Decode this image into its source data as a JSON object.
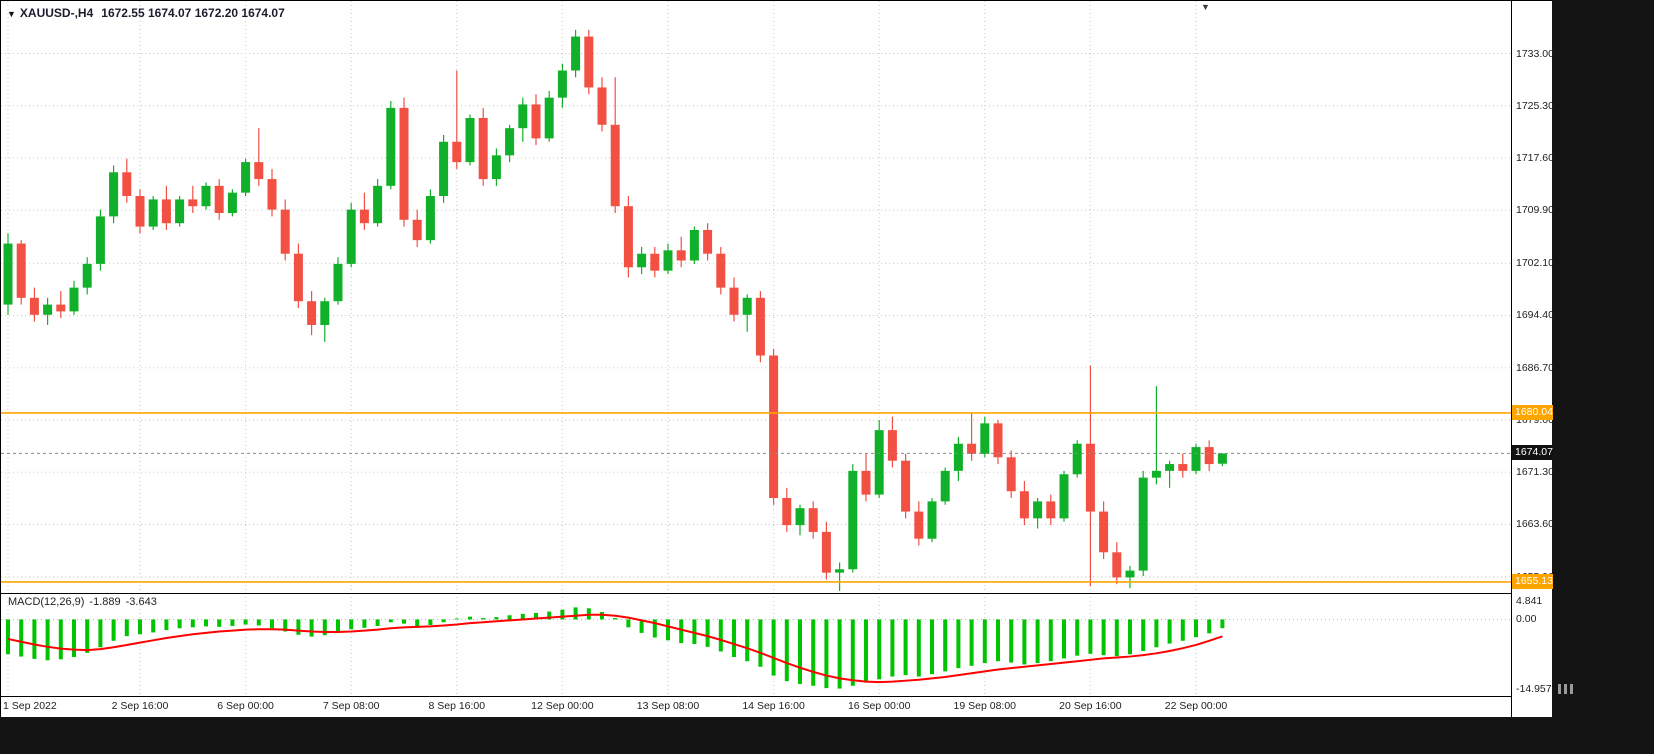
{
  "colors": {
    "background": "#ffffff",
    "frame": "#000000",
    "grid": "#c9c9c9",
    "bull": "#10b02a",
    "bear": "#f25042",
    "level": "#ffa500",
    "price_line": "#8a8a8a",
    "macd_histogram": "#00c400",
    "macd_signal": "#ff0000",
    "outside": "#141414"
  },
  "header": {
    "collapse_icon": "▼",
    "symbol": "XAUUSD-,H4",
    "ohlc": "1672.55 1674.07 1672.20 1674.07"
  },
  "macd_panel": {
    "title": "MACD(12,26,9)",
    "main_value": "-1.889",
    "signal_value": "-3.643"
  },
  "price_axis": {
    "labels": [
      "1733.00",
      "1725.30",
      "1717.60",
      "1709.90",
      "1702.10",
      "1694.40",
      "1686.70",
      "1679.00",
      "1671.30",
      "1663.60",
      "1655.90"
    ]
  },
  "macd_axis": {
    "labels": [
      "4.841",
      "0.00",
      "-14.957"
    ],
    "values": [
      4.841,
      0,
      -14.957
    ]
  },
  "levels": [
    {
      "label": "1680.04",
      "value": 1680.04
    },
    {
      "label": "1655.13",
      "value": 1655.13
    }
  ],
  "current_price": {
    "label": "1674.07",
    "value": 1674.07
  },
  "time_axis": {
    "labels": [
      "1 Sep 2022",
      "2 Sep 16:00",
      "6 Sep 00:00",
      "7 Sep 08:00",
      "8 Sep 16:00",
      "12 Sep 00:00",
      "13 Sep 08:00",
      "14 Sep 16:00",
      "16 Sep 00:00",
      "19 Sep 08:00",
      "20 Sep 16:00",
      "22 Sep 00:00"
    ],
    "tick_indices": [
      0,
      10,
      18,
      26,
      34,
      42,
      50,
      58,
      66,
      74,
      82,
      90
    ]
  },
  "chart_data": {
    "type": "candlestick",
    "symbol": "XAUUSD",
    "timeframe": "H4",
    "x": {
      "x0": 7,
      "dx": 13.2
    },
    "main": {
      "type": "candlestick",
      "ylim": [
        1653.5,
        1737.5
      ],
      "grid_prices": [
        1733.0,
        1725.3,
        1717.6,
        1709.9,
        1702.1,
        1694.4,
        1686.7,
        1679.0,
        1671.3,
        1663.6,
        1655.9
      ],
      "candles_ohlc": [
        [
          1696,
          1706.5,
          1694.5,
          1705
        ],
        [
          1705,
          1705.5,
          1696,
          1697
        ],
        [
          1697,
          1698.5,
          1693.5,
          1694.5
        ],
        [
          1694.5,
          1697,
          1693,
          1696
        ],
        [
          1696,
          1698,
          1694,
          1695
        ],
        [
          1695,
          1699.5,
          1694.5,
          1698.5
        ],
        [
          1698.5,
          1703,
          1697.5,
          1702
        ],
        [
          1702,
          1710,
          1701,
          1709
        ],
        [
          1709,
          1716.5,
          1708,
          1715.5
        ],
        [
          1715.5,
          1717.5,
          1711,
          1712
        ],
        [
          1712,
          1713,
          1706.5,
          1707.5
        ],
        [
          1707.5,
          1712,
          1707,
          1711.5
        ],
        [
          1711.5,
          1713.5,
          1707,
          1708
        ],
        [
          1708,
          1712,
          1707.5,
          1711.5
        ],
        [
          1711.5,
          1713.5,
          1709.5,
          1710.5
        ],
        [
          1710.5,
          1714,
          1710,
          1713.5
        ],
        [
          1713.5,
          1714.5,
          1708.5,
          1709.5
        ],
        [
          1709.5,
          1713,
          1709,
          1712.5
        ],
        [
          1712.5,
          1717.5,
          1712,
          1717
        ],
        [
          1717,
          1722,
          1713.5,
          1714.5
        ],
        [
          1714.5,
          1716,
          1709,
          1710
        ],
        [
          1710,
          1711.5,
          1702.5,
          1703.5
        ],
        [
          1703.5,
          1705,
          1695.5,
          1696.5
        ],
        [
          1696.5,
          1698,
          1691.5,
          1693
        ],
        [
          1693,
          1697,
          1690.5,
          1696.5
        ],
        [
          1696.5,
          1703,
          1696,
          1702
        ],
        [
          1702,
          1711,
          1701.5,
          1710
        ],
        [
          1710,
          1712.5,
          1707,
          1708
        ],
        [
          1708,
          1714.5,
          1707.5,
          1713.5
        ],
        [
          1713.5,
          1726,
          1713,
          1725
        ],
        [
          1725,
          1726.5,
          1707.5,
          1708.5
        ],
        [
          1708.5,
          1710,
          1704.5,
          1705.5
        ],
        [
          1705.5,
          1713,
          1705,
          1712
        ],
        [
          1712,
          1721,
          1711,
          1720
        ],
        [
          1720,
          1730.5,
          1716,
          1717
        ],
        [
          1717,
          1724,
          1716.5,
          1723.5
        ],
        [
          1723.5,
          1725,
          1713.5,
          1714.5
        ],
        [
          1714.5,
          1719,
          1713.5,
          1718
        ],
        [
          1718,
          1722.5,
          1717,
          1722
        ],
        [
          1722,
          1726.5,
          1720,
          1725.5
        ],
        [
          1725.5,
          1727,
          1719.5,
          1720.5
        ],
        [
          1720.5,
          1727.5,
          1720,
          1726.5
        ],
        [
          1726.5,
          1731.5,
          1725,
          1730.5
        ],
        [
          1730.5,
          1736.5,
          1729.5,
          1735.5
        ],
        [
          1735.5,
          1736.5,
          1727,
          1728
        ],
        [
          1728,
          1729.5,
          1721.5,
          1722.5
        ],
        [
          1722.5,
          1729.5,
          1709.5,
          1710.5
        ],
        [
          1710.5,
          1712,
          1700,
          1701.5
        ],
        [
          1701.5,
          1704.5,
          1700.5,
          1703.5
        ],
        [
          1703.5,
          1704.5,
          1700,
          1701
        ],
        [
          1701,
          1705,
          1700.5,
          1704
        ],
        [
          1704,
          1706,
          1701.5,
          1702.5
        ],
        [
          1702.5,
          1707.5,
          1702,
          1707
        ],
        [
          1707,
          1708,
          1702.5,
          1703.5
        ],
        [
          1703.5,
          1704.5,
          1697.5,
          1698.5
        ],
        [
          1698.5,
          1700,
          1693.5,
          1694.5
        ],
        [
          1694.5,
          1697.5,
          1692,
          1697
        ],
        [
          1697,
          1698,
          1687.5,
          1688.5
        ],
        [
          1688.5,
          1689.5,
          1666.5,
          1667.5
        ],
        [
          1667.5,
          1669,
          1662.5,
          1663.5
        ],
        [
          1663.5,
          1666.5,
          1662,
          1666
        ],
        [
          1666,
          1667,
          1661.5,
          1662.5
        ],
        [
          1662.5,
          1664,
          1655.5,
          1656.5
        ],
        [
          1656.5,
          1658,
          1653.8,
          1657
        ],
        [
          1657,
          1672.5,
          1656.5,
          1671.5
        ],
        [
          1671.5,
          1674,
          1667,
          1668
        ],
        [
          1668,
          1679,
          1667.5,
          1677.5
        ],
        [
          1677.5,
          1679.5,
          1672,
          1673
        ],
        [
          1673,
          1674,
          1664.5,
          1665.5
        ],
        [
          1665.5,
          1667,
          1660.5,
          1661.5
        ],
        [
          1661.5,
          1667.5,
          1661,
          1667
        ],
        [
          1667,
          1672,
          1666.5,
          1671.5
        ],
        [
          1671.5,
          1676.5,
          1670,
          1675.5
        ],
        [
          1675.5,
          1680,
          1673,
          1674
        ],
        [
          1674,
          1679.5,
          1673.5,
          1678.5
        ],
        [
          1678.5,
          1679,
          1672.5,
          1673.5
        ],
        [
          1673.5,
          1674.5,
          1667.5,
          1668.5
        ],
        [
          1668.5,
          1670,
          1663.5,
          1664.5
        ],
        [
          1664.5,
          1667.5,
          1663,
          1667
        ],
        [
          1667,
          1668,
          1663.5,
          1664.5
        ],
        [
          1664.5,
          1671.5,
          1664,
          1671
        ],
        [
          1671,
          1676,
          1670.5,
          1675.5
        ],
        [
          1675.5,
          1687,
          1654.5,
          1665.5
        ],
        [
          1665.5,
          1667,
          1658.5,
          1659.5
        ],
        [
          1659.5,
          1661,
          1654.8,
          1655.8
        ],
        [
          1655.8,
          1657.5,
          1654.2,
          1656.8
        ],
        [
          1656.8,
          1671.5,
          1656,
          1670.5
        ],
        [
          1670.5,
          1684,
          1669.5,
          1671.5
        ],
        [
          1671.5,
          1673,
          1669,
          1672.5
        ],
        [
          1672.5,
          1674,
          1670.5,
          1671.5
        ],
        [
          1671.5,
          1675.5,
          1671,
          1675
        ],
        [
          1675,
          1676,
          1671.5,
          1672.5
        ],
        [
          1672.55,
          1674.07,
          1672.2,
          1674.07
        ]
      ]
    },
    "macd": {
      "type": "bar",
      "ylim": [
        -16.5,
        5.7
      ],
      "histogram": [
        -7.5,
        -8,
        -8.5,
        -8.8,
        -8.6,
        -8.1,
        -7.2,
        -6,
        -4.6,
        -3.6,
        -3.2,
        -2.8,
        -2.3,
        -1.9,
        -1.7,
        -1.5,
        -1.6,
        -1.4,
        -1.1,
        -1.3,
        -1.9,
        -2.6,
        -3.3,
        -3.7,
        -3.4,
        -2.8,
        -2.1,
        -1.8,
        -1.4,
        -0.6,
        -0.9,
        -1.5,
        -1.2,
        -0.6,
        0.2,
        0.6,
        0.3,
        0.5,
        0.9,
        1.2,
        1.4,
        1.7,
        2.1,
        2.6,
        2.4,
        1.6,
        0.3,
        -1.7,
        -2.9,
        -3.9,
        -4.5,
        -5.1,
        -5.3,
        -5.9,
        -6.9,
        -8.1,
        -9,
        -10.2,
        -12.1,
        -13.3,
        -13.9,
        -14.3,
        -14.8,
        -14.9,
        -14.3,
        -13.6,
        -12.9,
        -12.3,
        -12,
        -12.3,
        -11.8,
        -11.2,
        -10.5,
        -10,
        -9.4,
        -9,
        -9.3,
        -9.7,
        -9.4,
        -9,
        -8.4,
        -7.8,
        -7.4,
        -7.7,
        -7.9,
        -7.5,
        -6.8,
        -6,
        -5.2,
        -4.6,
        -3.8,
        -3,
        -1.889
      ],
      "signal": [
        -4.2,
        -4.8,
        -5.4,
        -5.9,
        -6.3,
        -6.5,
        -6.6,
        -6.4,
        -6,
        -5.5,
        -5,
        -4.5,
        -4,
        -3.6,
        -3.2,
        -2.9,
        -2.6,
        -2.4,
        -2.2,
        -2.1,
        -2.1,
        -2.2,
        -2.4,
        -2.6,
        -2.7,
        -2.7,
        -2.6,
        -2.4,
        -2.2,
        -1.9,
        -1.7,
        -1.6,
        -1.5,
        -1.3,
        -1.1,
        -0.8,
        -0.6,
        -0.4,
        -0.2,
        0,
        0.2,
        0.4,
        0.6,
        0.8,
        1,
        1,
        0.8,
        0.4,
        -0.2,
        -0.8,
        -1.5,
        -2.2,
        -2.9,
        -3.6,
        -4.4,
        -5.3,
        -6.2,
        -7.2,
        -8.3,
        -9.4,
        -10.4,
        -11.3,
        -12.1,
        -12.7,
        -13.1,
        -13.4,
        -13.5,
        -13.4,
        -13.2,
        -13,
        -12.7,
        -12.4,
        -12,
        -11.6,
        -11.2,
        -10.8,
        -10.5,
        -10.2,
        -9.9,
        -9.6,
        -9.3,
        -9,
        -8.7,
        -8.4,
        -8.2,
        -8,
        -7.7,
        -7.3,
        -6.8,
        -6.2,
        -5.5,
        -4.6,
        -3.643
      ]
    }
  }
}
